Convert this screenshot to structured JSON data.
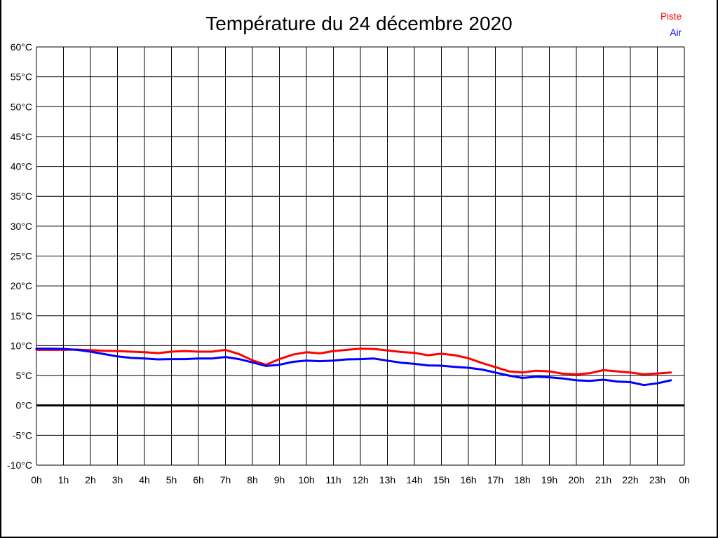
{
  "title": "Température du 24 décembre 2020",
  "legend": {
    "position": "top-right",
    "items": [
      {
        "label": "Piste",
        "color": "#ff0000"
      },
      {
        "label": "Air",
        "color": "#0000ff"
      }
    ]
  },
  "chart_data": {
    "type": "line",
    "title": "Température du 24 décembre 2020",
    "xlabel": "",
    "ylabel": "",
    "xlim": [
      0,
      24
    ],
    "ylim": [
      -10,
      60
    ],
    "grid": true,
    "zero_line": true,
    "grid_color": "#000000",
    "x_tick_values": [
      0,
      1,
      2,
      3,
      4,
      5,
      6,
      7,
      8,
      9,
      10,
      11,
      12,
      13,
      14,
      15,
      16,
      17,
      18,
      19,
      20,
      21,
      22,
      23,
      24
    ],
    "x_tick_labels": [
      "0h",
      "1h",
      "2h",
      "3h",
      "4h",
      "5h",
      "6h",
      "7h",
      "8h",
      "9h",
      "10h",
      "11h",
      "12h",
      "13h",
      "14h",
      "15h",
      "16h",
      "17h",
      "18h",
      "19h",
      "20h",
      "21h",
      "22h",
      "23h",
      "0h"
    ],
    "y_tick_values": [
      60,
      55,
      50,
      45,
      40,
      35,
      30,
      25,
      20,
      15,
      10,
      5,
      0,
      -5,
      -10
    ],
    "y_tick_labels": [
      "60°C",
      "55°C",
      "50°C",
      "45°C",
      "40°C",
      "35°C",
      "30°C",
      "25°C",
      "20°C",
      "15°C",
      "10°C",
      "5°C",
      "0°C",
      "-5°C",
      "-10°C"
    ],
    "x": [
      0,
      0.5,
      1,
      1.5,
      2,
      2.5,
      3,
      3.5,
      4,
      4.5,
      5,
      5.5,
      6,
      6.5,
      7,
      7.5,
      8,
      8.5,
      9,
      9.5,
      10,
      10.5,
      11,
      11.5,
      12,
      12.5,
      13,
      13.5,
      14,
      14.5,
      15,
      15.5,
      16,
      16.5,
      17,
      17.5,
      18,
      18.5,
      19,
      19.5,
      20,
      20.5,
      21,
      21.5,
      22,
      22.5,
      23,
      23.5
    ],
    "series": [
      {
        "name": "Piste",
        "color": "#ff0000",
        "values": [
          9.3,
          9.3,
          9.3,
          9.35,
          9.25,
          9.15,
          9.1,
          9.0,
          8.9,
          8.75,
          9.0,
          9.1,
          9.0,
          9.0,
          9.3,
          8.6,
          7.55,
          6.8,
          7.75,
          8.5,
          8.9,
          8.7,
          9.1,
          9.3,
          9.5,
          9.45,
          9.2,
          8.95,
          8.8,
          8.4,
          8.65,
          8.4,
          7.9,
          7.1,
          6.4,
          5.7,
          5.5,
          5.8,
          5.7,
          5.3,
          5.2,
          5.4,
          5.9,
          5.7,
          5.5,
          5.2,
          5.35,
          5.5
        ]
      },
      {
        "name": "Air",
        "color": "#0000ff",
        "values": [
          9.5,
          9.5,
          9.45,
          9.3,
          9.0,
          8.6,
          8.2,
          7.95,
          7.85,
          7.7,
          7.75,
          7.75,
          7.85,
          7.85,
          8.1,
          7.75,
          7.2,
          6.6,
          6.8,
          7.3,
          7.5,
          7.4,
          7.5,
          7.7,
          7.75,
          7.85,
          7.5,
          7.15,
          6.95,
          6.7,
          6.65,
          6.45,
          6.3,
          6.0,
          5.5,
          5.0,
          4.6,
          4.8,
          4.7,
          4.5,
          4.2,
          4.1,
          4.3,
          4.0,
          3.9,
          3.4,
          3.7,
          4.2
        ]
      }
    ]
  }
}
